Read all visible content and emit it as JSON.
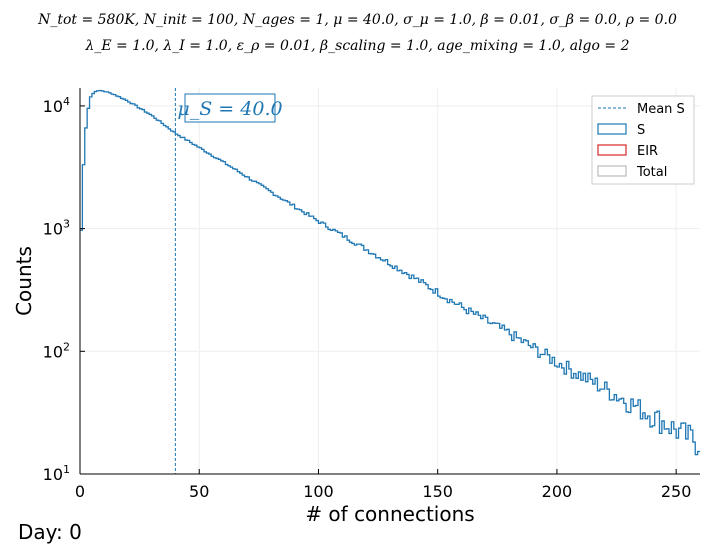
{
  "chart_data": {
    "type": "histogram",
    "title_lines": [
      "N_tot = 580K, N_init = 100, N_ages = 1, μ = 40.0, σ_μ = 1.0, β = 0.01, σ_β = 0.0, ρ = 0.0",
      "λ_E = 1.0, λ_I = 1.0, ε_ρ = 0.01, β_scaling = 1.0, age_mixing = 1.0, algo = 2"
    ],
    "xlabel": "# of connections",
    "ylabel": "Counts",
    "xlim": [
      0,
      260
    ],
    "ylim": [
      10,
      14000
    ],
    "yscale": "log",
    "x_ticks": [
      0,
      50,
      100,
      150,
      200,
      250
    ],
    "y_ticks": [
      {
        "value": 10,
        "base": "10",
        "exp": "1"
      },
      {
        "value": 100,
        "base": "10",
        "exp": "2"
      },
      {
        "value": 1000,
        "base": "10",
        "exp": "3"
      },
      {
        "value": 10000,
        "base": "10",
        "exp": "4"
      }
    ],
    "grid": true,
    "legend_position": "top-right",
    "legend": [
      {
        "label": "Mean S",
        "style": "dashed-line",
        "color": "#1f77b4"
      },
      {
        "label": "S",
        "style": "box",
        "color": "#1f77b4"
      },
      {
        "label": "EIR",
        "style": "box",
        "color": "#d62728"
      },
      {
        "label": "Total",
        "style": "box",
        "color": "#bbbbbb"
      }
    ],
    "mean_line": {
      "x": 40.0,
      "label": "μ_S = 40.0"
    },
    "series": [
      {
        "name": "S",
        "color": "#1f77b4",
        "step_profile": {
          "x": [
            0,
            1,
            2,
            4,
            6,
            8,
            10,
            14,
            20,
            30,
            40,
            60,
            80,
            100,
            120,
            140,
            160,
            180,
            200,
            220,
            240,
            250,
            260
          ],
          "y": [
            470,
            2000,
            5500,
            11500,
            13000,
            13400,
            13200,
            12500,
            11000,
            8400,
            6000,
            3500,
            2000,
            1150,
            680,
            400,
            230,
            140,
            82,
            50,
            30,
            23,
            18
          ]
        }
      }
    ]
  },
  "footer": {
    "day_label": "Day: 0"
  }
}
